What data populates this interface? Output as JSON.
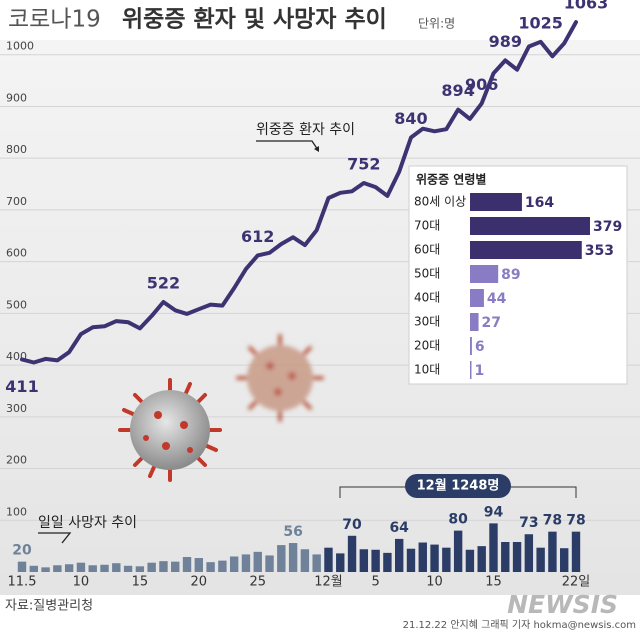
{
  "chart_data": [
    {
      "type": "combo",
      "kicker": "코로나19",
      "title": "위중증 환자 및 사망자 추이",
      "unit": "단위:명",
      "ylim": [
        0,
        1100
      ],
      "yticks": [
        100,
        200,
        300,
        400,
        500,
        600,
        700,
        800,
        900,
        1000
      ],
      "grid": true,
      "categories": [
        "11.5",
        null,
        null,
        null,
        null,
        "10",
        null,
        null,
        null,
        null,
        "15",
        null,
        null,
        null,
        null,
        "20",
        null,
        null,
        null,
        null,
        "25",
        null,
        null,
        null,
        null,
        null,
        "12월",
        null,
        null,
        null,
        "5",
        null,
        null,
        null,
        null,
        "10",
        null,
        null,
        null,
        null,
        "15",
        null,
        null,
        null,
        null,
        null,
        null,
        "22일"
      ],
      "series": [
        {
          "name": "위중증 환자 추이",
          "type": "line",
          "color": "#3d3372",
          "values": [
            411,
            405,
            412,
            409,
            425,
            460,
            473,
            475,
            485,
            483,
            471,
            495,
            522,
            506,
            499,
            508,
            517,
            515,
            549,
            586,
            612,
            617,
            634,
            647,
            632,
            661,
            723,
            733,
            736,
            752,
            744,
            727,
            774,
            840,
            857,
            852,
            856,
            894,
            876,
            906,
            964,
            989,
            971,
            1016,
            1025,
            997,
            1022,
            1063
          ],
          "value_labels": [
            411,
            null,
            null,
            null,
            null,
            null,
            null,
            null,
            null,
            null,
            null,
            null,
            522,
            null,
            null,
            null,
            null,
            null,
            null,
            null,
            612,
            null,
            null,
            null,
            null,
            null,
            null,
            null,
            null,
            752,
            null,
            null,
            null,
            840,
            null,
            null,
            null,
            894,
            null,
            906,
            null,
            989,
            null,
            null,
            1025,
            null,
            null,
            1063
          ]
        },
        {
          "name": "일일 사망자 추이",
          "type": "bar",
          "colors": [
            "#6f8299",
            "#6f8299",
            "#6f8299",
            "#6f8299",
            "#6f8299",
            "#6f8299",
            "#6f8299",
            "#6f8299",
            "#6f8299",
            "#6f8299",
            "#6f8299",
            "#6f8299",
            "#6f8299",
            "#6f8299",
            "#6f8299",
            "#6f8299",
            "#6f8299",
            "#6f8299",
            "#6f8299",
            "#6f8299",
            "#6f8299",
            "#6f8299",
            "#6f8299",
            "#6f8299",
            "#6f8299",
            "#6f8299",
            "#2b3d66",
            "#2b3d66",
            "#2b3d66",
            "#2b3d66",
            "#2b3d66",
            "#2b3d66",
            "#2b3d66",
            "#2b3d66",
            "#2b3d66",
            "#2b3d66",
            "#2b3d66",
            "#2b3d66",
            "#2b3d66",
            "#2b3d66",
            "#2b3d66",
            "#2b3d66",
            "#2b3d66",
            "#2b3d66",
            "#2b3d66",
            "#2b3d66",
            "#2b3d66",
            "#2b3d66"
          ],
          "values": [
            20,
            12,
            9,
            13,
            15,
            18,
            13,
            14,
            17,
            12,
            11,
            18,
            21,
            20,
            29,
            27,
            19,
            22,
            30,
            34,
            39,
            32,
            52,
            56,
            44,
            34,
            47,
            36,
            70,
            44,
            43,
            37,
            64,
            45,
            57,
            53,
            47,
            80,
            43,
            50,
            94,
            58,
            58,
            73,
            47,
            78,
            46,
            78
          ],
          "value_labels": [
            20,
            null,
            null,
            null,
            null,
            null,
            null,
            null,
            null,
            null,
            null,
            null,
            null,
            null,
            null,
            null,
            null,
            null,
            null,
            null,
            null,
            null,
            null,
            56,
            null,
            null,
            null,
            null,
            70,
            null,
            null,
            null,
            64,
            null,
            null,
            null,
            null,
            80,
            null,
            null,
            94,
            null,
            null,
            73,
            null,
            78,
            null,
            78
          ]
        }
      ],
      "annotation": "12월 1248명",
      "source": "자료:질병관리청",
      "credit": "21.12.22 안지혜 그래픽 기자 hokma@newsis.com",
      "logo": "NEWSIS"
    },
    {
      "type": "hbar",
      "title": "위중증 연령별",
      "categories": [
        "80세 이상",
        "70대",
        "60대",
        "50대",
        "40대",
        "30대",
        "20대",
        "10대"
      ],
      "values": [
        164,
        379,
        353,
        89,
        44,
        27,
        6,
        1
      ],
      "colors": [
        "#3b2f6e",
        "#3b2f6e",
        "#3b2f6e",
        "#8a7cc4",
        "#8a7cc4",
        "#8a7cc4",
        "#8a7cc4",
        "#8a7cc4"
      ],
      "xlim": [
        0,
        379
      ]
    }
  ]
}
